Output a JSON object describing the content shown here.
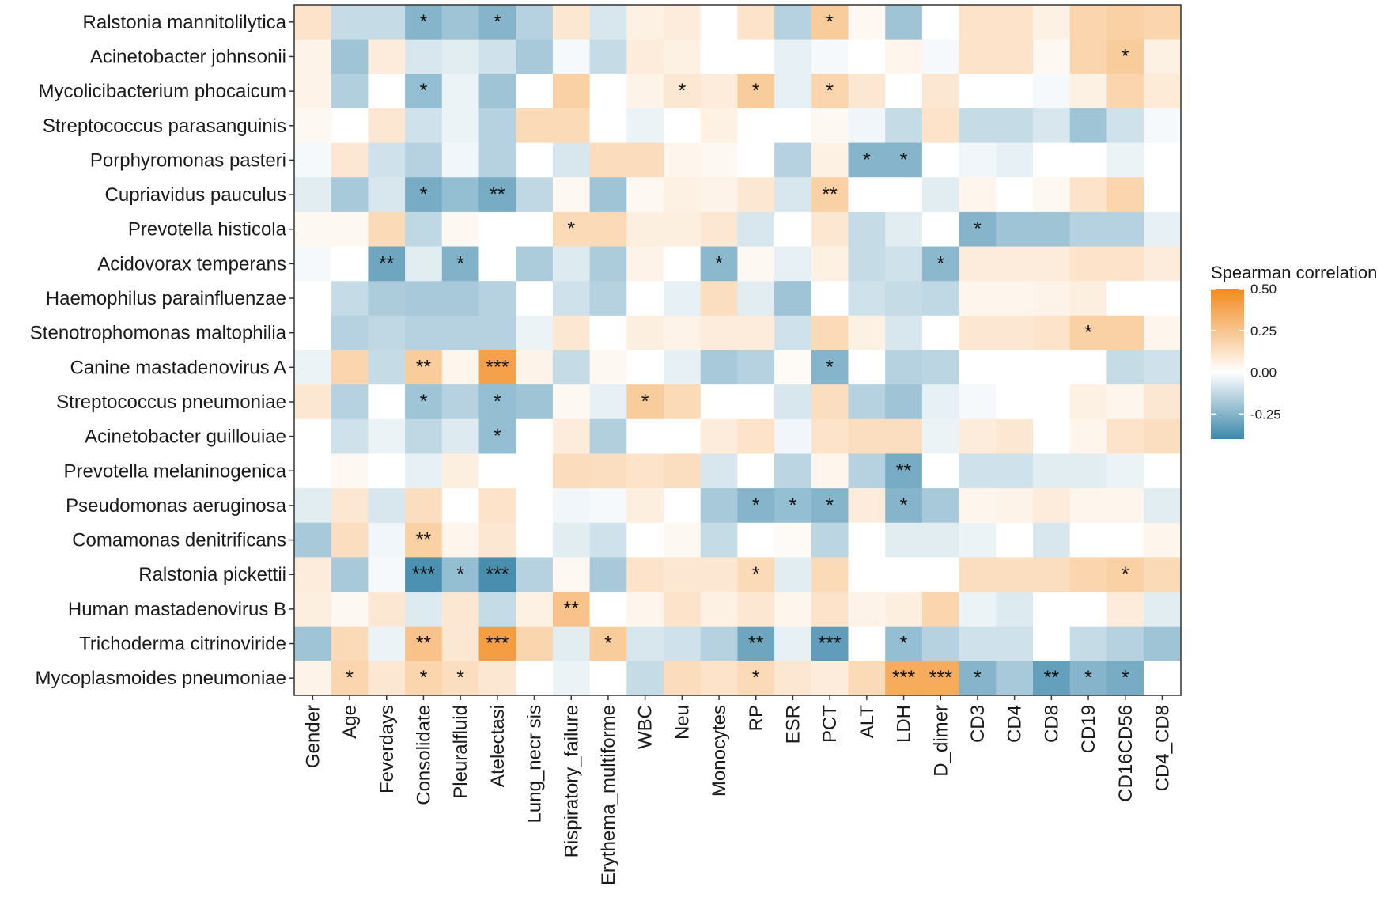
{
  "chart_data": {
    "type": "heatmap",
    "title": "",
    "xlabel": "",
    "ylabel": "",
    "legend": {
      "title": "Spearman correlation",
      "ticks": [
        0.5,
        0.25,
        0.0,
        -0.25
      ],
      "tick_labels": [
        "0.50",
        "0.25",
        "0.00",
        "-0.25"
      ],
      "range": [
        -0.4,
        0.5
      ],
      "low_color": "#3d88ab",
      "mid_color": "#ffffff",
      "high_color": "#f28a1e"
    },
    "rows": [
      "Ralstonia mannitolilytica",
      "Acinetobacter johnsonii",
      "Mycolicibacterium phocaicum",
      "Streptococcus parasanguinis",
      "Porphyromonas pasteri",
      "Cupriavidus pauculus",
      "Prevotella histicola",
      "Acidovorax temperans",
      "Haemophilus parainfluenzae",
      "Stenotrophomonas maltophilia",
      "Canine mastadenovirus A",
      "Streptococcus pneumoniae",
      "Acinetobacter guillouiae",
      "Prevotella melaninogenica",
      "Pseudomonas aeruginosa",
      "Comamonas denitrificans",
      "Ralstonia pickettii",
      "Human mastadenovirus B",
      "Trichoderma citrinoviride",
      "Mycoplasmoides pneumoniae"
    ],
    "columns": [
      "Gender",
      "Age",
      "Feverdays",
      "Consolidate",
      "Pleuralfluid",
      "Atelectasi",
      "Lung_necr sis",
      "Rispiratory_failure",
      "Erythema_multiforme",
      "WBC",
      "Neu",
      "Monocytes",
      "RP",
      "ESR",
      "PCT",
      "ALT",
      "LDH",
      "D_dimer",
      "CD3",
      "CD4",
      "CD8",
      "CD19",
      "CD16CD56",
      "CD4_CD8"
    ],
    "values": [
      [
        0.12,
        -0.12,
        -0.12,
        -0.25,
        -0.2,
        -0.25,
        -0.15,
        0.1,
        -0.08,
        0.06,
        0.08,
        0.0,
        0.12,
        -0.15,
        0.22,
        0.03,
        -0.2,
        0.0,
        0.12,
        0.12,
        0.06,
        0.18,
        0.2,
        0.18
      ],
      [
        0.05,
        -0.2,
        0.08,
        -0.08,
        -0.06,
        -0.1,
        -0.18,
        -0.02,
        -0.12,
        0.08,
        0.06,
        0.0,
        0.0,
        -0.05,
        -0.02,
        0.0,
        0.04,
        -0.02,
        0.12,
        0.12,
        0.03,
        0.18,
        0.22,
        0.06
      ],
      [
        0.05,
        -0.16,
        0.0,
        -0.22,
        -0.04,
        -0.2,
        0.0,
        0.2,
        0.0,
        0.05,
        0.1,
        0.08,
        0.22,
        -0.05,
        0.18,
        0.1,
        0.0,
        0.1,
        0.0,
        0.0,
        -0.02,
        0.06,
        0.18,
        0.09
      ],
      [
        0.03,
        0.0,
        0.1,
        -0.1,
        -0.04,
        -0.15,
        0.16,
        0.16,
        0.0,
        -0.04,
        0.0,
        0.06,
        0.0,
        0.0,
        0.03,
        -0.03,
        -0.12,
        0.12,
        -0.12,
        -0.12,
        -0.08,
        -0.2,
        -0.1,
        -0.02
      ],
      [
        -0.02,
        0.1,
        -0.1,
        -0.15,
        -0.03,
        -0.15,
        0.0,
        -0.08,
        0.15,
        0.15,
        0.04,
        0.03,
        0.0,
        -0.15,
        0.06,
        -0.25,
        -0.25,
        0.0,
        -0.03,
        -0.05,
        0.0,
        0.0,
        -0.04,
        0.0
      ],
      [
        -0.06,
        -0.18,
        -0.08,
        -0.28,
        -0.22,
        -0.28,
        -0.13,
        0.03,
        -0.2,
        0.03,
        0.06,
        0.05,
        0.1,
        -0.08,
        0.2,
        0.0,
        0.0,
        -0.06,
        0.04,
        0.0,
        0.03,
        0.12,
        0.18,
        0.0
      ],
      [
        0.03,
        0.03,
        0.16,
        -0.13,
        0.03,
        0.0,
        0.0,
        0.16,
        0.16,
        0.07,
        0.07,
        0.1,
        -0.08,
        0.0,
        0.1,
        -0.12,
        -0.06,
        0.0,
        -0.25,
        -0.2,
        -0.2,
        -0.15,
        -0.15,
        -0.05
      ],
      [
        -0.02,
        0.0,
        -0.3,
        -0.06,
        -0.26,
        0.0,
        -0.17,
        -0.07,
        -0.17,
        0.05,
        0.0,
        -0.24,
        0.03,
        -0.05,
        0.06,
        -0.12,
        -0.1,
        -0.24,
        0.08,
        0.08,
        0.08,
        0.12,
        0.12,
        0.08
      ],
      [
        0.0,
        -0.12,
        -0.17,
        -0.18,
        -0.18,
        -0.15,
        0.0,
        -0.1,
        -0.15,
        0.0,
        -0.05,
        0.14,
        -0.06,
        -0.2,
        0.0,
        -0.1,
        -0.12,
        -0.13,
        0.04,
        0.04,
        0.05,
        0.07,
        0.0,
        0.0
      ],
      [
        0.0,
        -0.15,
        -0.13,
        -0.15,
        -0.15,
        -0.15,
        -0.04,
        0.1,
        0.0,
        0.07,
        0.05,
        0.08,
        0.08,
        -0.1,
        0.16,
        0.06,
        -0.08,
        0.0,
        0.1,
        0.1,
        0.12,
        0.2,
        0.2,
        0.04
      ],
      [
        -0.04,
        0.18,
        -0.12,
        0.22,
        0.04,
        0.4,
        0.05,
        -0.12,
        0.03,
        0.0,
        -0.05,
        -0.18,
        -0.15,
        0.02,
        -0.25,
        0.0,
        -0.15,
        -0.14,
        0.0,
        0.0,
        0.0,
        0.0,
        -0.12,
        -0.1
      ],
      [
        0.1,
        -0.15,
        0.0,
        -0.2,
        -0.15,
        -0.22,
        -0.2,
        0.03,
        -0.05,
        0.22,
        0.16,
        0.0,
        0.0,
        -0.08,
        0.14,
        -0.15,
        -0.2,
        -0.05,
        -0.02,
        0.0,
        0.0,
        0.06,
        0.04,
        0.1
      ],
      [
        0.0,
        -0.1,
        -0.04,
        -0.13,
        -0.07,
        -0.22,
        0.0,
        0.08,
        -0.16,
        0.0,
        0.0,
        0.08,
        0.12,
        -0.03,
        0.12,
        0.14,
        0.14,
        -0.04,
        0.08,
        0.1,
        0.0,
        0.04,
        0.12,
        0.14
      ],
      [
        0.0,
        0.03,
        0.0,
        -0.05,
        0.07,
        0.0,
        0.0,
        0.15,
        0.14,
        0.12,
        0.14,
        -0.08,
        0.0,
        -0.14,
        0.04,
        -0.15,
        -0.28,
        0.0,
        -0.1,
        -0.1,
        -0.06,
        -0.06,
        -0.04,
        0.0
      ],
      [
        -0.06,
        0.1,
        -0.08,
        0.14,
        0.0,
        0.12,
        0.0,
        -0.03,
        -0.02,
        0.07,
        0.0,
        -0.18,
        -0.25,
        -0.22,
        -0.25,
        0.08,
        -0.25,
        -0.18,
        0.04,
        0.05,
        0.08,
        0.04,
        0.04,
        -0.06
      ],
      [
        -0.18,
        0.14,
        -0.03,
        0.2,
        0.04,
        0.1,
        0.0,
        -0.06,
        -0.1,
        0.0,
        0.03,
        -0.12,
        0.0,
        0.02,
        -0.14,
        0.0,
        -0.06,
        -0.06,
        -0.04,
        0.0,
        -0.08,
        0.0,
        0.0,
        0.04
      ],
      [
        0.08,
        -0.18,
        -0.02,
        -0.37,
        -0.22,
        -0.38,
        -0.15,
        0.03,
        -0.18,
        0.12,
        0.1,
        0.1,
        0.16,
        -0.06,
        0.16,
        0.0,
        0.0,
        0.0,
        0.14,
        0.14,
        0.14,
        0.18,
        0.2,
        0.16
      ],
      [
        0.07,
        0.03,
        0.1,
        -0.07,
        0.1,
        -0.12,
        0.06,
        0.26,
        0.0,
        0.04,
        0.12,
        0.06,
        0.1,
        0.04,
        0.12,
        0.05,
        0.07,
        0.18,
        -0.04,
        -0.07,
        0.0,
        0.0,
        0.08,
        -0.06
      ],
      [
        -0.2,
        0.16,
        -0.04,
        0.26,
        0.1,
        0.42,
        0.18,
        -0.06,
        0.22,
        -0.08,
        -0.1,
        -0.15,
        -0.3,
        -0.05,
        -0.33,
        0.0,
        -0.22,
        -0.15,
        -0.1,
        -0.1,
        0.0,
        -0.12,
        -0.15,
        -0.2
      ],
      [
        0.05,
        0.18,
        0.1,
        0.18,
        0.14,
        0.1,
        0.0,
        -0.04,
        0.0,
        -0.12,
        0.15,
        0.12,
        0.16,
        0.1,
        0.08,
        0.16,
        0.36,
        0.36,
        -0.25,
        -0.18,
        -0.32,
        -0.25,
        -0.28,
        0.0
      ]
    ],
    "significance": [
      [
        "",
        "",
        "",
        "*",
        "",
        "*",
        "",
        "",
        "",
        "",
        "",
        "",
        "",
        "",
        "*",
        "",
        "",
        "",
        "",
        "",
        "",
        "",
        "",
        ""
      ],
      [
        "",
        "",
        "",
        "",
        "",
        "",
        "",
        "",
        "",
        "",
        "",
        "",
        "",
        "",
        "",
        "",
        "",
        "",
        "",
        "",
        "",
        "",
        "*",
        ""
      ],
      [
        "",
        "",
        "",
        "*",
        "",
        "",
        "",
        "",
        "",
        "",
        "*",
        "",
        "*",
        "",
        "*",
        "",
        "",
        "",
        "",
        "",
        "",
        "",
        "",
        ""
      ],
      [
        "",
        "",
        "",
        "",
        "",
        "",
        "",
        "",
        "",
        "",
        "",
        "",
        "",
        "",
        "",
        "",
        "",
        "",
        "",
        "",
        "",
        "",
        "",
        ""
      ],
      [
        "",
        "",
        "",
        "",
        "",
        "",
        "",
        "",
        "",
        "",
        "",
        "",
        "",
        "",
        "",
        "*",
        "*",
        "",
        "",
        "",
        "",
        "",
        "",
        ""
      ],
      [
        "",
        "",
        "",
        "*",
        "",
        "**",
        "",
        "",
        "",
        "",
        "",
        "",
        "",
        "",
        "**",
        "",
        "",
        "",
        "",
        "",
        "",
        "",
        "",
        ""
      ],
      [
        "",
        "",
        "",
        "",
        "",
        "",
        "",
        "*",
        "",
        "",
        "",
        "",
        "",
        "",
        "",
        "",
        "",
        "",
        "*",
        "",
        "",
        "",
        "",
        ""
      ],
      [
        "",
        "",
        "**",
        "",
        "*",
        "",
        "",
        "",
        "",
        "",
        "",
        "*",
        "",
        "",
        "",
        "",
        "",
        "*",
        "",
        "",
        "",
        "",
        "",
        ""
      ],
      [
        "",
        "",
        "",
        "",
        "",
        "",
        "",
        "",
        "",
        "",
        "",
        "",
        "",
        "",
        "",
        "",
        "",
        "",
        "",
        "",
        "",
        "",
        "",
        ""
      ],
      [
        "",
        "",
        "",
        "",
        "",
        "",
        "",
        "",
        "",
        "",
        "",
        "",
        "",
        "",
        "",
        "",
        "",
        "",
        "",
        "",
        "",
        "*",
        "",
        ""
      ],
      [
        "",
        "",
        "",
        "**",
        "",
        "***",
        "",
        "",
        "",
        "",
        "",
        "",
        "",
        "",
        "*",
        "",
        "",
        "",
        "",
        "",
        "",
        "",
        "",
        ""
      ],
      [
        "",
        "",
        "",
        "*",
        "",
        "*",
        "",
        "",
        "",
        "*",
        "",
        "",
        "",
        "",
        "",
        "",
        "",
        "",
        "",
        "",
        "",
        "",
        "",
        ""
      ],
      [
        "",
        "",
        "",
        "",
        "",
        "*",
        "",
        "",
        "",
        "",
        "",
        "",
        "",
        "",
        "",
        "",
        "",
        "",
        "",
        "",
        "",
        "",
        "",
        ""
      ],
      [
        "",
        "",
        "",
        "",
        "",
        "",
        "",
        "",
        "",
        "",
        "",
        "",
        "",
        "",
        "",
        "",
        "**",
        "",
        "",
        "",
        "",
        "",
        "",
        ""
      ],
      [
        "",
        "",
        "",
        "",
        "",
        "",
        "",
        "",
        "",
        "",
        "",
        "",
        "*",
        "*",
        "*",
        "",
        "*",
        "",
        "",
        "",
        "",
        "",
        "",
        ""
      ],
      [
        "",
        "",
        "",
        "**",
        "",
        "",
        "",
        "",
        "",
        "",
        "",
        "",
        "",
        "",
        "",
        "",
        "",
        "",
        "",
        "",
        "",
        "",
        "",
        ""
      ],
      [
        "",
        "",
        "",
        "***",
        "*",
        "***",
        "",
        "",
        "",
        "",
        "",
        "",
        "*",
        "",
        "",
        "",
        "",
        "",
        "",
        "",
        "",
        "",
        "*",
        ""
      ],
      [
        "",
        "",
        "",
        "",
        "",
        "",
        "",
        "**",
        "",
        "",
        "",
        "",
        "",
        "",
        "",
        "",
        "",
        "",
        "",
        "",
        "",
        "",
        "",
        ""
      ],
      [
        "",
        "",
        "",
        "**",
        "",
        "***",
        "",
        "",
        "*",
        "",
        "",
        "",
        "**",
        "",
        "***",
        "",
        "*",
        "",
        "",
        "",
        "",
        "",
        "",
        ""
      ],
      [
        "",
        "*",
        "",
        "*",
        "*",
        "",
        "",
        "",
        "",
        "",
        "",
        "",
        "*",
        "",
        "",
        "",
        "***",
        "***",
        "*",
        "",
        "**",
        "*",
        "*",
        ""
      ]
    ]
  }
}
